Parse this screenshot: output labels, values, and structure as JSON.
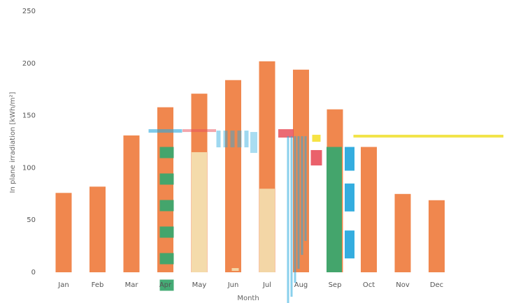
{
  "chart_data": {
    "type": "bar",
    "title": "",
    "xlabel": "Month",
    "ylabel": "In plane irradiation [kWh/m²]",
    "ylim": [
      0,
      250
    ],
    "yticks": [
      0,
      50,
      100,
      150,
      200,
      250
    ],
    "grid": false,
    "legend": "none",
    "categories": [
      "Jan",
      "Feb",
      "Mar",
      "Apr",
      "May",
      "Jun",
      "Jul",
      "Aug",
      "Sep",
      "Oct",
      "Nov",
      "Dec"
    ],
    "series": [
      {
        "values": [
          76,
          82,
          131,
          158,
          171,
          184,
          202,
          194,
          156,
          120,
          75,
          69
        ]
      }
    ],
    "colors": {
      "bar": "#f0874e",
      "reference_line": "#f2e44a",
      "overlay_green": "#3aa66e",
      "overlay_cream": "#f3dfb0",
      "overlay_blue": "#29a9dd",
      "overlay_red": "#e8505b",
      "overlay_yellow": "#f5e23a"
    },
    "reference_line_value": 133
  }
}
